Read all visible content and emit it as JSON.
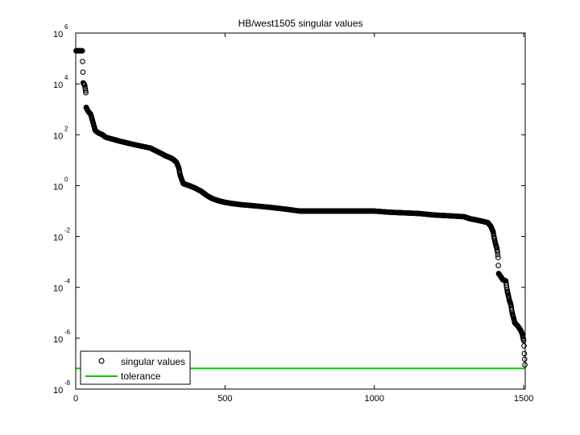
{
  "chart_data": {
    "type": "scatter",
    "title": "HB/west1505 singular values",
    "xlabel": "",
    "ylabel": "",
    "xlim": [
      0,
      1505
    ],
    "ylim_exponents": [
      -8,
      6
    ],
    "y_scale": "log",
    "x_ticks": [
      "0",
      "500",
      "1000",
      "1500"
    ],
    "y_ticks": [
      {
        "base": "10",
        "exp": "6"
      },
      {
        "base": "10",
        "exp": "4"
      },
      {
        "base": "10",
        "exp": "2"
      },
      {
        "base": "10",
        "exp": "0"
      },
      {
        "base": "10",
        "exp": "-2"
      },
      {
        "base": "10",
        "exp": "-4"
      },
      {
        "base": "10",
        "exp": "-6"
      },
      {
        "base": "10",
        "exp": "-8"
      }
    ],
    "grid": false,
    "legend": {
      "placement": "bottom-left",
      "entries": [
        {
          "label": "singular values",
          "marker": "circle",
          "color": "#000000"
        },
        {
          "label": "tolerance",
          "marker": "line",
          "color": "#00cc00"
        }
      ]
    },
    "tolerance": {
      "name": "tolerance",
      "value": 6.5e-08,
      "color": "#00cc00"
    },
    "series": [
      {
        "name": "singular values",
        "color": "#000000",
        "points": [
          [
            1,
            200000
          ],
          [
            10,
            200000
          ],
          [
            20,
            200000
          ],
          [
            22,
            200000
          ],
          [
            25,
            11000
          ],
          [
            30,
            9000
          ],
          [
            34,
            4500
          ],
          [
            35,
            1200
          ],
          [
            40,
            900
          ],
          [
            45,
            750
          ],
          [
            50,
            650
          ],
          [
            55,
            400
          ],
          [
            60,
            250
          ],
          [
            65,
            150
          ],
          [
            75,
            120
          ],
          [
            90,
            100
          ],
          [
            100,
            80
          ],
          [
            150,
            55
          ],
          [
            200,
            40
          ],
          [
            250,
            30
          ],
          [
            280,
            20
          ],
          [
            300,
            15
          ],
          [
            320,
            12
          ],
          [
            330,
            10
          ],
          [
            338,
            8
          ],
          [
            345,
            5
          ],
          [
            350,
            2.5
          ],
          [
            360,
            1.2
          ],
          [
            380,
            1.0
          ],
          [
            400,
            0.8
          ],
          [
            420,
            0.6
          ],
          [
            440,
            0.4
          ],
          [
            460,
            0.3
          ],
          [
            480,
            0.25
          ],
          [
            500,
            0.22
          ],
          [
            520,
            0.2
          ],
          [
            550,
            0.18
          ],
          [
            600,
            0.16
          ],
          [
            650,
            0.14
          ],
          [
            700,
            0.12
          ],
          [
            750,
            0.1
          ],
          [
            800,
            0.1
          ],
          [
            850,
            0.1
          ],
          [
            900,
            0.1
          ],
          [
            950,
            0.1
          ],
          [
            1000,
            0.1
          ],
          [
            1050,
            0.09
          ],
          [
            1100,
            0.085
          ],
          [
            1150,
            0.08
          ],
          [
            1200,
            0.07
          ],
          [
            1250,
            0.065
          ],
          [
            1300,
            0.06
          ],
          [
            1320,
            0.05
          ],
          [
            1340,
            0.045
          ],
          [
            1360,
            0.04
          ],
          [
            1380,
            0.035
          ],
          [
            1390,
            0.025
          ],
          [
            1395,
            0.018
          ],
          [
            1398,
            0.015
          ],
          [
            1400,
            0.01
          ],
          [
            1402,
            0.008
          ],
          [
            1404,
            0.006
          ],
          [
            1406,
            0.005
          ],
          [
            1408,
            0.004
          ],
          [
            1410,
            0.0035
          ],
          [
            1412,
            0.0025
          ],
          [
            1414,
            0.0015
          ],
          [
            1416,
            0.00035
          ],
          [
            1420,
            0.0003
          ],
          [
            1430,
            0.0002
          ],
          [
            1440,
            0.00018
          ],
          [
            1443,
            0.0001
          ],
          [
            1445,
            7e-05
          ],
          [
            1448,
            5e-05
          ],
          [
            1450,
            4e-05
          ],
          [
            1452,
            3e-05
          ],
          [
            1455,
            2.5e-05
          ],
          [
            1458,
            1.8e-05
          ],
          [
            1460,
            1.2e-05
          ],
          [
            1462,
            9e-06
          ],
          [
            1465,
            7e-06
          ],
          [
            1468,
            5e-06
          ],
          [
            1470,
            4e-06
          ],
          [
            1475,
            3.5e-06
          ],
          [
            1480,
            3e-06
          ],
          [
            1485,
            2.5e-06
          ],
          [
            1490,
            2e-06
          ],
          [
            1495,
            1.5e-06
          ],
          [
            1498,
            1e-06
          ],
          [
            1500,
            8e-07
          ],
          [
            1501,
            5e-07
          ],
          [
            1502,
            2.5e-07
          ],
          [
            1503,
            1.5e-07
          ],
          [
            1504,
            9e-08
          ]
        ]
      }
    ]
  }
}
